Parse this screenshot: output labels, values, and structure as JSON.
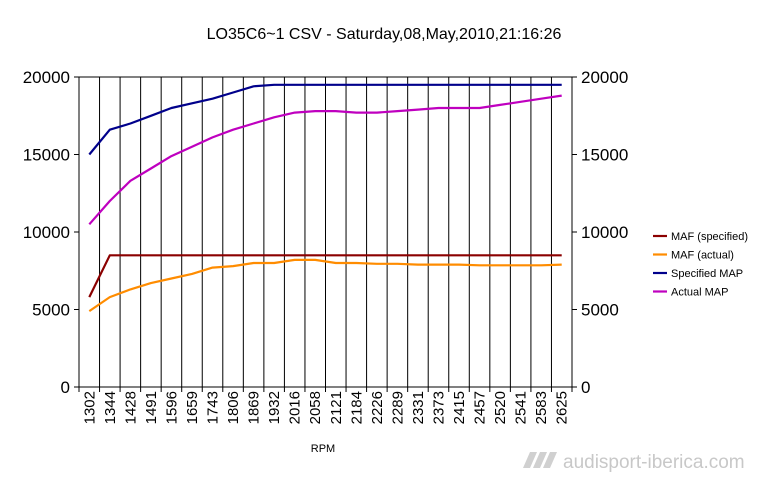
{
  "chart_data": {
    "type": "line",
    "title": "LO35C6~1 CSV - Saturday,08,May,2010,21:16:26",
    "xlabel": "RPM",
    "ylabel": "",
    "ylim": [
      0,
      20000
    ],
    "y_ticks": [
      "0",
      "5000",
      "10000",
      "15000",
      "20000"
    ],
    "y2_ticks": [
      "0",
      "5000",
      "10000",
      "15000",
      "20000"
    ],
    "grid": "vertical",
    "legend_position": "right",
    "categories": [
      "1302",
      "1344",
      "1428",
      "1491",
      "1596",
      "1659",
      "1743",
      "1806",
      "1869",
      "1932",
      "2016",
      "2058",
      "2121",
      "2184",
      "2226",
      "2289",
      "2331",
      "2373",
      "2415",
      "2457",
      "2520",
      "2541",
      "2583",
      "2625"
    ],
    "series": [
      {
        "name": "MAF (specified)",
        "color": "#8b0000",
        "values": [
          5800,
          8500,
          8500,
          8500,
          8500,
          8500,
          8500,
          8500,
          8500,
          8500,
          8500,
          8500,
          8500,
          8500,
          8500,
          8500,
          8500,
          8500,
          8500,
          8500,
          8500,
          8500,
          8500,
          8500
        ]
      },
      {
        "name": "MAF (actual)",
        "color": "#ff8c00",
        "values": [
          4900,
          5800,
          6300,
          6700,
          7000,
          7300,
          7700,
          7800,
          8000,
          8000,
          8200,
          8200,
          8000,
          8000,
          7950,
          7950,
          7900,
          7900,
          7900,
          7850,
          7850,
          7850,
          7850,
          7900
        ]
      },
      {
        "name": "Specified MAP",
        "color": "#00008b",
        "values": [
          15000,
          16600,
          17000,
          17500,
          18000,
          18300,
          18600,
          19000,
          19400,
          19500,
          19500,
          19500,
          19500,
          19500,
          19500,
          19500,
          19500,
          19500,
          19500,
          19500,
          19500,
          19500,
          19500,
          19500
        ]
      },
      {
        "name": "Actual MAP",
        "color": "#bf00bf",
        "values": [
          10500,
          12000,
          13300,
          14100,
          14900,
          15500,
          16100,
          16600,
          17000,
          17400,
          17700,
          17800,
          17800,
          17700,
          17700,
          17800,
          17900,
          18000,
          18000,
          18000,
          18200,
          18400,
          18600,
          18800
        ]
      }
    ]
  },
  "watermark": {
    "text": "audisport-iberica.com",
    "icon": "stripes-logo-icon"
  }
}
